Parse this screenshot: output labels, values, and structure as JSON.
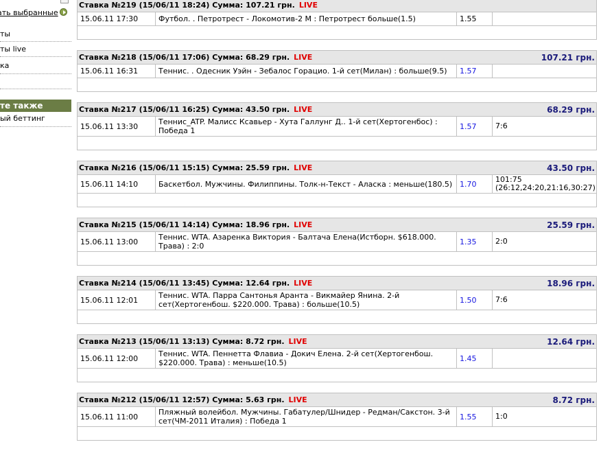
{
  "sidebar": {
    "show_selected_link": "ать выбранные",
    "items": [
      "ты",
      "ты live",
      "ка"
    ],
    "section_title": "те также",
    "section_items": [
      "ый беттинг"
    ]
  },
  "bets": [
    {
      "title": "Ставка №219  (15/06/11 18:24) Сумма: 107.21 грн.",
      "live": "LIVE",
      "total": "",
      "date": "15.06.11 17:30",
      "event": "Футбол. . Петротрест - Локомотив-2 М : Петротрест больше(1.5)",
      "coef": "1.55",
      "score": "",
      "coef_color": "#000000"
    },
    {
      "title": "Ставка №218  (15/06/11 17:06) Сумма: 68.29 грн.",
      "live": "LIVE",
      "total": "107.21 грн.",
      "date": "15.06.11 16:31",
      "event": "Теннис. . Одесник Уэйн - Зебалос Горацио. 1-й сет(Милан) : больше(9.5)",
      "coef": "1.57",
      "score": ""
    },
    {
      "title": "Ставка №217  (15/06/11 16:25) Сумма: 43.50 грн.",
      "live": "LIVE",
      "total": "68.29 грн.",
      "date": "15.06.11 13:30",
      "event": "Теннис_ATP. Малисс Ксавьер - Хута Галлунг Д.. 1-й сет(Хертогенбос) : Победа 1",
      "coef": "1.57",
      "score": "7:6"
    },
    {
      "title": "Ставка №216  (15/06/11 15:15) Сумма: 25.59 грн.",
      "live": "LIVE",
      "total": "43.50 грн.",
      "date": "15.06.11 14:10",
      "event": "Баскетбол. Мужчины. Филиппины. Толк-н-Текст - Аласка : меньше(180.5)",
      "coef": "1.70",
      "score": "101:75 (26:12,24:20,21:16,30:27)"
    },
    {
      "title": "Ставка №215  (15/06/11 14:14) Сумма: 18.96 грн.",
      "live": "LIVE",
      "total": "25.59 грн.",
      "date": "15.06.11 13:00",
      "event": "Теннис. WTA. Азаренка Виктория - Балтача Елена(Истборн. $618.000. Трава) : 2:0",
      "coef": "1.35",
      "score": "2:0"
    },
    {
      "title": "Ставка №214  (15/06/11 13:45) Сумма: 12.64 грн.",
      "live": "LIVE",
      "total": "18.96 грн.",
      "date": "15.06.11 12:01",
      "event": "Теннис. WTA. Парра Сантонья Аранта - Викмайер Янина. 2-й сет(Хертогенбош. $220.000. Трава) : больше(10.5)",
      "coef": "1.50",
      "score": "7:6"
    },
    {
      "title": "Ставка №213  (15/06/11 13:13) Сумма: 8.72 грн.",
      "live": "LIVE",
      "total": "12.64 грн.",
      "date": "15.06.11 12:00",
      "event": "Теннис. WTA. Пеннетта Флавиа - Докич Елена. 2-й сет(Хертогенбош. $220.000. Трава) : меньше(10.5)",
      "coef": "1.45",
      "score": ""
    },
    {
      "title": "Ставка №212  (15/06/11 12:57) Сумма: 5.63 грн.",
      "live": "LIVE",
      "total": "8.72 грн.",
      "date": "15.06.11 11:00",
      "event": "Пляжный волейбол. Мужчины. Габатулер/Шнидер - Редман/Сакстон. 3-й сет(ЧМ-2011 Италия) : Победа 1",
      "coef": "1.55",
      "score": "1:0"
    }
  ],
  "colors": {
    "live": "#e00000",
    "total": "#1a1a7a",
    "coef": "#1515e0",
    "sidebar_header": "#6b7d45"
  }
}
